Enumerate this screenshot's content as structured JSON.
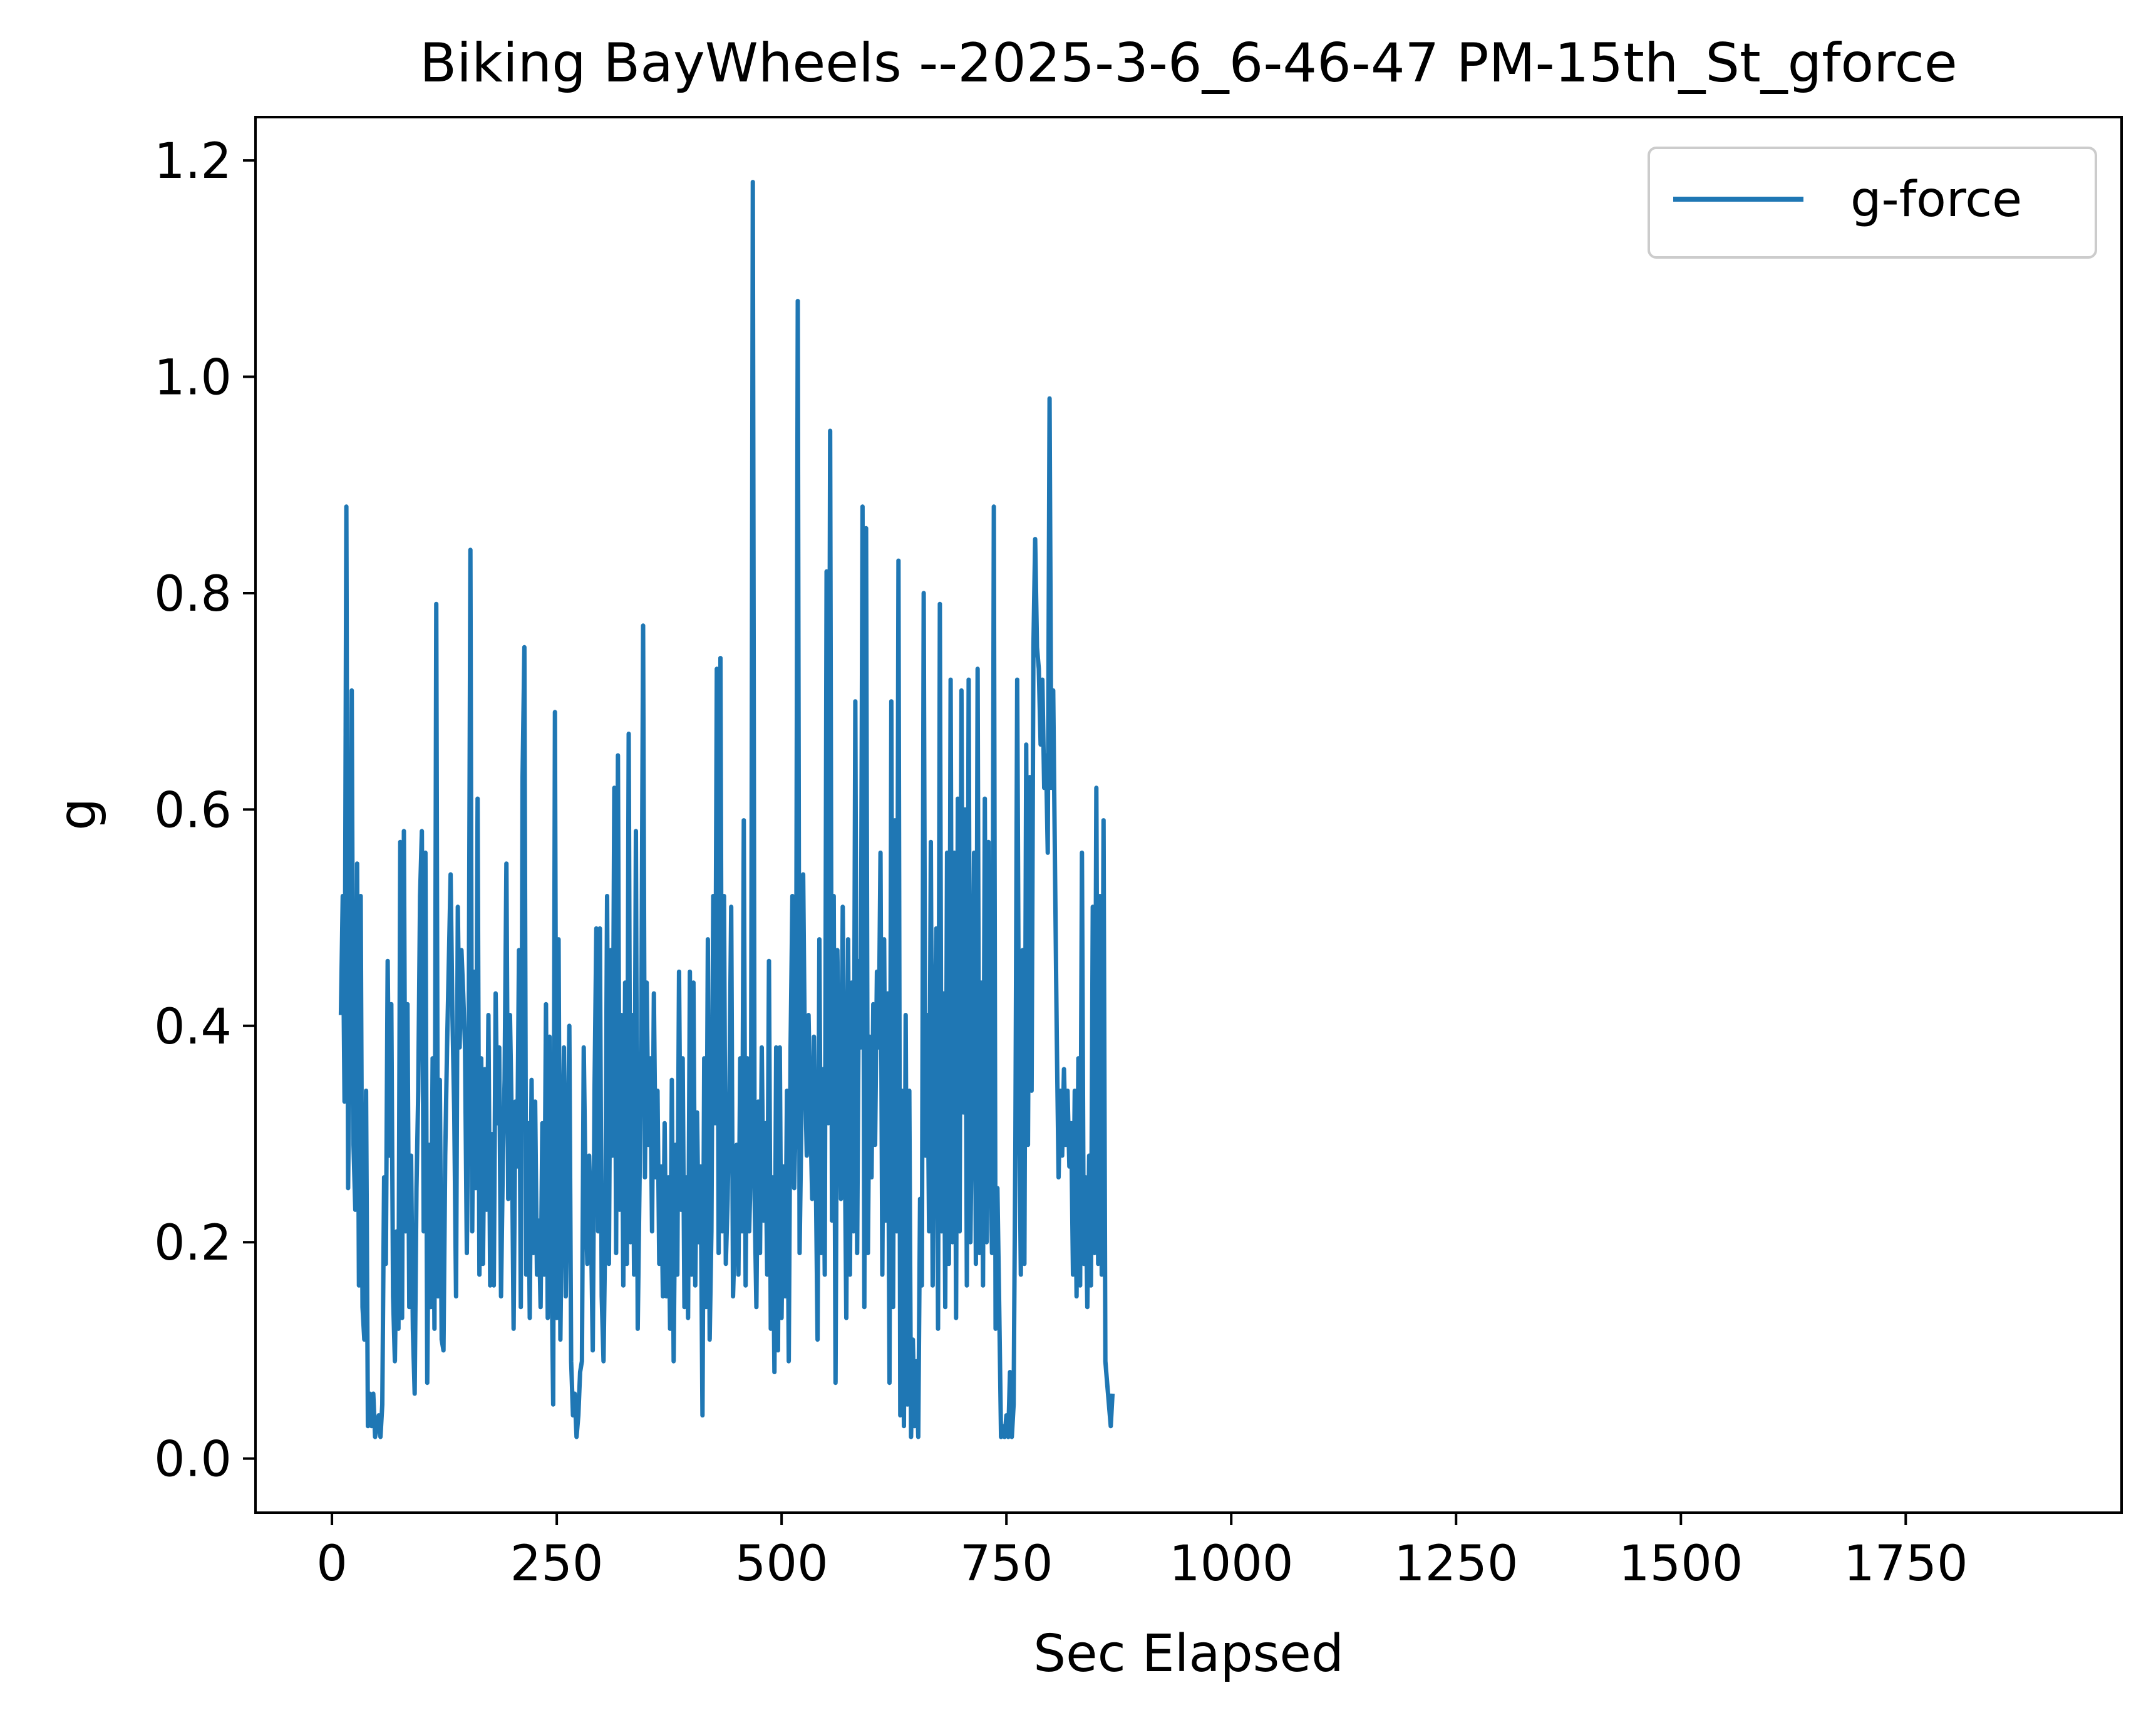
{
  "chart_data": {
    "type": "line",
    "title": "Biking BayWheels --2025-3-6_6-46-47 PM-15th_St_gforce",
    "xlabel": "Sec Elapsed",
    "ylabel": "g",
    "xlim": [
      -85,
      1990
    ],
    "ylim": [
      -0.05,
      1.24
    ],
    "xticks": [
      0,
      250,
      500,
      750,
      1000,
      1250,
      1500,
      1750
    ],
    "xtick_labels": [
      "0",
      "250",
      "500",
      "750",
      "1000",
      "1250",
      "1500",
      "1750"
    ],
    "yticks": [
      0.0,
      0.2,
      0.4,
      0.6,
      0.8,
      1.0,
      1.2
    ],
    "ytick_labels": [
      "0.0",
      "0.2",
      "0.4",
      "0.6",
      "0.8",
      "1.0",
      "1.2"
    ],
    "grid": false,
    "legend": {
      "position": "top-right",
      "entries": [
        "g-force"
      ]
    },
    "series": [
      {
        "name": "g-force",
        "color": "#1f77b4",
        "x_start": 10,
        "x_step": 2,
        "values": [
          0.41,
          0.52,
          0.33,
          0.88,
          0.25,
          0.42,
          0.71,
          0.29,
          0.23,
          0.55,
          0.16,
          0.52,
          0.14,
          0.11,
          0.34,
          0.03,
          0.06,
          0.03,
          0.06,
          0.02,
          0.03,
          0.04,
          0.02,
          0.05,
          0.26,
          0.18,
          0.46,
          0.28,
          0.42,
          0.15,
          0.09,
          0.21,
          0.12,
          0.57,
          0.13,
          0.58,
          0.21,
          0.42,
          0.14,
          0.28,
          0.12,
          0.06,
          0.25,
          0.34,
          0.52,
          0.58,
          0.21,
          0.56,
          0.07,
          0.29,
          0.14,
          0.37,
          0.12,
          0.79,
          0.15,
          0.35,
          0.11,
          0.1,
          0.28,
          0.38,
          0.46,
          0.54,
          0.41,
          0.32,
          0.15,
          0.51,
          0.38,
          0.47,
          0.43,
          0.38,
          0.19,
          0.37,
          0.84,
          0.21,
          0.45,
          0.25,
          0.61,
          0.17,
          0.37,
          0.18,
          0.36,
          0.23,
          0.41,
          0.16,
          0.3,
          0.16,
          0.43,
          0.31,
          0.38,
          0.15,
          0.27,
          0.35,
          0.55,
          0.24,
          0.41,
          0.31,
          0.12,
          0.33,
          0.27,
          0.47,
          0.14,
          0.63,
          0.75,
          0.17,
          0.31,
          0.13,
          0.35,
          0.19,
          0.33,
          0.17,
          0.22,
          0.14,
          0.31,
          0.17,
          0.42,
          0.13,
          0.39,
          0.2,
          0.05,
          0.69,
          0.13,
          0.48,
          0.11,
          0.26,
          0.38,
          0.15,
          0.27,
          0.4,
          0.09,
          0.04,
          0.06,
          0.02,
          0.04,
          0.08,
          0.09,
          0.38,
          0.25,
          0.18,
          0.28,
          0.22,
          0.1,
          0.34,
          0.49,
          0.21,
          0.49,
          0.15,
          0.09,
          0.22,
          0.52,
          0.18,
          0.47,
          0.28,
          0.62,
          0.19,
          0.65,
          0.23,
          0.41,
          0.16,
          0.44,
          0.18,
          0.67,
          0.2,
          0.41,
          0.17,
          0.58,
          0.12,
          0.25,
          0.39,
          0.77,
          0.26,
          0.44,
          0.29,
          0.37,
          0.21,
          0.43,
          0.26,
          0.34,
          0.18,
          0.27,
          0.15,
          0.31,
          0.15,
          0.26,
          0.12,
          0.35,
          0.09,
          0.29,
          0.17,
          0.45,
          0.23,
          0.37,
          0.14,
          0.26,
          0.13,
          0.45,
          0.17,
          0.44,
          0.16,
          0.32,
          0.2,
          0.27,
          0.04,
          0.37,
          0.14,
          0.48,
          0.11,
          0.21,
          0.52,
          0.31,
          0.73,
          0.19,
          0.74,
          0.21,
          0.52,
          0.18,
          0.24,
          0.34,
          0.51,
          0.15,
          0.21,
          0.29,
          0.17,
          0.37,
          0.21,
          0.59,
          0.16,
          0.37,
          0.21,
          0.28,
          1.18,
          0.24,
          0.14,
          0.33,
          0.19,
          0.38,
          0.22,
          0.31,
          0.17,
          0.46,
          0.12,
          0.26,
          0.08,
          0.38,
          0.1,
          0.38,
          0.13,
          0.27,
          0.15,
          0.34,
          0.09,
          0.38,
          0.52,
          0.25,
          0.33,
          1.07,
          0.19,
          0.31,
          0.54,
          0.36,
          0.28,
          0.41,
          0.32,
          0.24,
          0.39,
          0.27,
          0.11,
          0.48,
          0.19,
          0.36,
          0.17,
          0.82,
          0.31,
          0.95,
          0.22,
          0.52,
          0.07,
          0.47,
          0.36,
          0.24,
          0.51,
          0.32,
          0.13,
          0.48,
          0.17,
          0.44,
          0.21,
          0.7,
          0.19,
          0.46,
          0.38,
          0.88,
          0.14,
          0.86,
          0.19,
          0.39,
          0.26,
          0.42,
          0.29,
          0.45,
          0.38,
          0.56,
          0.17,
          0.48,
          0.22,
          0.43,
          0.07,
          0.7,
          0.14,
          0.59,
          0.21,
          0.83,
          0.04,
          0.34,
          0.03,
          0.41,
          0.05,
          0.34,
          0.02,
          0.11,
          0.03,
          0.09,
          0.02,
          0.24,
          0.16,
          0.8,
          0.28,
          0.41,
          0.21,
          0.57,
          0.16,
          0.38,
          0.49,
          0.12,
          0.79,
          0.21,
          0.43,
          0.14,
          0.56,
          0.18,
          0.72,
          0.2,
          0.56,
          0.13,
          0.61,
          0.21,
          0.71,
          0.32,
          0.6,
          0.16,
          0.72,
          0.2,
          0.35,
          0.56,
          0.18,
          0.73,
          0.19,
          0.44,
          0.16,
          0.61,
          0.2,
          0.57,
          0.28,
          0.19,
          0.88,
          0.12,
          0.25,
          0.14,
          0.02,
          0.03,
          0.02,
          0.04,
          0.02,
          0.08,
          0.02,
          0.05,
          0.29,
          0.72,
          0.35,
          0.17,
          0.47,
          0.18,
          0.66,
          0.29,
          0.63,
          0.34,
          0.75,
          0.85,
          0.75,
          0.73,
          0.66,
          0.72,
          0.62,
          0.65,
          0.56,
          0.98,
          0.62,
          0.71,
          0.55,
          0.39,
          0.26,
          0.34,
          0.28,
          0.36,
          0.29,
          0.34,
          0.27,
          0.31,
          0.17,
          0.34,
          0.15,
          0.37,
          0.16,
          0.56,
          0.18,
          0.26,
          0.14,
          0.28,
          0.16,
          0.51,
          0.19,
          0.62,
          0.18,
          0.52,
          0.17,
          0.59,
          0.09,
          0.07,
          0.05,
          0.03,
          0.06
        ]
      }
    ]
  }
}
